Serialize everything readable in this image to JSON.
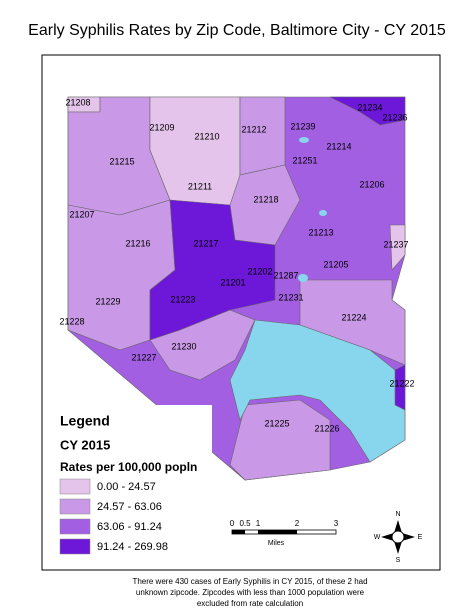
{
  "title": "Early Syphilis Rates by Zip Code, Baltimore City - CY 2015",
  "zip_labels": [
    "21208",
    "21209",
    "21210",
    "21212",
    "21239",
    "21234",
    "21236",
    "21214",
    "21215",
    "21251",
    "21206",
    "21211",
    "21218",
    "21207",
    "21216",
    "21217",
    "21213",
    "21237",
    "21202",
    "21287",
    "21205",
    "21201",
    "21229",
    "21223",
    "21231",
    "21228",
    "21224",
    "21230",
    "21227",
    "21222",
    "21225",
    "21226"
  ],
  "legend": {
    "heading": "Legend",
    "year": "CY 2015",
    "subtitle": "Rates per 100,000 popln",
    "items": [
      "0.00 - 24.57",
      "24.57 - 63.06",
      "63.06 - 91.24",
      "91.24 - 269.98"
    ]
  },
  "scale_bar": {
    "ticks": [
      "0",
      "0.5",
      "1",
      "2",
      "3"
    ],
    "unit": "Miles"
  },
  "compass": {
    "n": "N",
    "s": "S",
    "e": "E",
    "w": "W"
  },
  "footnote": [
    "There were 430 cases of Early Syphilis in CY 2015, of these 2 had",
    "unknown zipcode. Zipcodes with less than 1000 population were",
    "excluded from rate calculation"
  ]
}
